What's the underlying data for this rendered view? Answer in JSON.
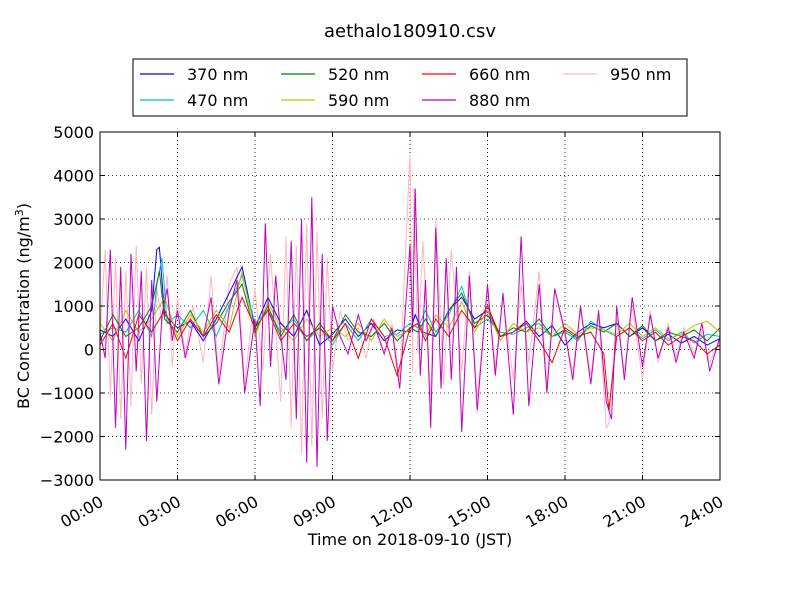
{
  "chart_data": {
    "type": "line",
    "title": "aethalo180910.csv",
    "xlabel": "Time on 2018-09-10 (JST)",
    "ylabel": "BC Concentration (ng/m³)",
    "ylabel_main": "BC Concentration (ng/m",
    "ylabel_sup": "3",
    "ylabel_close": ")",
    "xlim": [
      0,
      24
    ],
    "ylim": [
      -3000,
      5000
    ],
    "grid": true,
    "legend_position": "top, above plot",
    "x_ticks": [
      {
        "value": 0,
        "label": "00:00"
      },
      {
        "value": 3,
        "label": "03:00"
      },
      {
        "value": 6,
        "label": "06:00"
      },
      {
        "value": 9,
        "label": "09:00"
      },
      {
        "value": 12,
        "label": "12:00"
      },
      {
        "value": 15,
        "label": "15:00"
      },
      {
        "value": 18,
        "label": "18:00"
      },
      {
        "value": 21,
        "label": "21:00"
      },
      {
        "value": 24,
        "label": "24:00"
      }
    ],
    "y_ticks": [
      {
        "value": -3000,
        "label": "−3000"
      },
      {
        "value": -2000,
        "label": "−2000"
      },
      {
        "value": -1000,
        "label": "−1000"
      },
      {
        "value": 0,
        "label": "0"
      },
      {
        "value": 1000,
        "label": "1000"
      },
      {
        "value": 2000,
        "label": "2000"
      },
      {
        "value": 3000,
        "label": "3000"
      },
      {
        "value": 4000,
        "label": "4000"
      },
      {
        "value": 5000,
        "label": "5000"
      }
    ],
    "series": [
      {
        "name": "370 nm",
        "color": "#0000ff",
        "x": [
          0.0,
          0.5,
          1.0,
          1.5,
          2.0,
          2.2,
          2.3,
          2.5,
          3.0,
          3.5,
          4.0,
          4.5,
          5.0,
          5.5,
          6.0,
          6.5,
          7.0,
          7.5,
          8.0,
          8.5,
          9.0,
          9.5,
          10.0,
          10.5,
          11.0,
          11.5,
          12.0,
          12.2,
          12.5,
          13.0,
          13.5,
          14.0,
          14.5,
          15.0,
          15.5,
          16.0,
          16.5,
          17.0,
          17.5,
          18.0,
          18.5,
          19.0,
          19.5,
          20.0,
          20.5,
          21.0,
          21.5,
          22.0,
          22.5,
          23.0,
          23.5,
          24.0
        ],
        "y": [
          450,
          300,
          700,
          200,
          900,
          2300,
          2350,
          800,
          500,
          650,
          200,
          700,
          1300,
          1900,
          500,
          1200,
          600,
          300,
          900,
          100,
          350,
          700,
          300,
          600,
          200,
          450,
          400,
          800,
          400,
          300,
          900,
          1200,
          700,
          900,
          300,
          400,
          650,
          300,
          550,
          100,
          400,
          600,
          500,
          600,
          300,
          500,
          200,
          350,
          150,
          300,
          100,
          250
        ]
      },
      {
        "name": "470 nm",
        "color": "#00c0c0",
        "x": [
          0.0,
          0.5,
          1.0,
          1.5,
          2.0,
          2.2,
          2.4,
          2.6,
          3.0,
          3.5,
          4.0,
          4.5,
          5.0,
          5.5,
          6.0,
          6.5,
          7.0,
          7.5,
          8.0,
          8.5,
          9.0,
          9.5,
          10.0,
          10.5,
          11.0,
          11.5,
          12.0,
          12.3,
          12.6,
          13.0,
          13.5,
          14.0,
          14.5,
          15.0,
          15.5,
          16.0,
          16.5,
          17.0,
          17.5,
          18.0,
          18.5,
          19.0,
          19.5,
          20.0,
          20.5,
          21.0,
          21.5,
          22.0,
          22.5,
          23.0,
          23.5,
          24.0
        ],
        "y": [
          350,
          500,
          400,
          900,
          300,
          1500,
          2100,
          600,
          800,
          500,
          900,
          300,
          1000,
          1700,
          600,
          900,
          400,
          700,
          200,
          500,
          100,
          600,
          200,
          700,
          300,
          350,
          600,
          500,
          900,
          400,
          800,
          1450,
          500,
          700,
          400,
          350,
          500,
          600,
          300,
          400,
          200,
          650,
          450,
          300,
          500,
          250,
          450,
          200,
          400,
          150,
          350,
          300
        ]
      },
      {
        "name": "520 nm",
        "color": "#008000",
        "x": [
          0.0,
          0.5,
          1.0,
          1.5,
          2.0,
          2.3,
          2.5,
          3.0,
          3.5,
          4.0,
          4.5,
          5.0,
          5.5,
          6.0,
          6.5,
          7.0,
          7.5,
          8.0,
          8.5,
          9.0,
          9.5,
          10.0,
          10.5,
          11.0,
          11.5,
          12.0,
          12.3,
          12.6,
          13.0,
          13.5,
          14.0,
          14.5,
          15.0,
          15.5,
          16.0,
          16.5,
          17.0,
          17.5,
          18.0,
          18.5,
          19.0,
          19.5,
          20.0,
          20.5,
          21.0,
          21.5,
          22.0,
          22.5,
          23.0,
          23.5,
          24.0
        ],
        "y": [
          200,
          800,
          300,
          500,
          1000,
          1800,
          700,
          400,
          900,
          300,
          600,
          1100,
          1500,
          400,
          1000,
          300,
          800,
          200,
          600,
          200,
          800,
          400,
          300,
          600,
          200,
          500,
          400,
          700,
          300,
          900,
          1300,
          600,
          800,
          300,
          500,
          400,
          700,
          300,
          450,
          250,
          550,
          400,
          600,
          300,
          550,
          200,
          400,
          300,
          450,
          200,
          500
        ]
      },
      {
        "name": "590 nm",
        "color": "#c0c000",
        "x": [
          0.0,
          0.5,
          1.0,
          1.5,
          2.0,
          2.5,
          3.0,
          3.5,
          4.0,
          4.5,
          5.0,
          5.5,
          6.0,
          6.5,
          7.0,
          7.5,
          8.0,
          8.5,
          9.0,
          9.5,
          10.0,
          10.5,
          11.0,
          11.5,
          12.0,
          12.3,
          12.6,
          13.0,
          13.5,
          14.0,
          14.5,
          15.0,
          15.5,
          16.0,
          16.5,
          17.0,
          17.5,
          18.0,
          18.5,
          19.0,
          19.5,
          20.0,
          20.5,
          21.0,
          21.5,
          22.0,
          22.5,
          23.0,
          23.5,
          24.0
        ],
        "y": [
          600,
          200,
          900,
          400,
          700,
          1200,
          300,
          800,
          400,
          900,
          500,
          1800,
          300,
          1100,
          500,
          200,
          700,
          300,
          500,
          300,
          600,
          200,
          700,
          300,
          450,
          600,
          300,
          800,
          500,
          1100,
          400,
          900,
          200,
          600,
          400,
          500,
          300,
          600,
          350,
          500,
          450,
          350,
          600,
          300,
          500,
          250,
          350,
          550,
          650,
          400
        ]
      },
      {
        "name": "660 nm",
        "color": "#ff0000",
        "x": [
          0.0,
          0.5,
          1.0,
          1.5,
          2.0,
          2.5,
          3.0,
          3.5,
          4.0,
          4.5,
          5.0,
          5.5,
          6.0,
          6.5,
          7.0,
          7.5,
          8.0,
          8.5,
          9.0,
          9.5,
          10.0,
          10.5,
          11.0,
          11.5,
          12.0,
          12.3,
          12.6,
          13.0,
          13.5,
          14.0,
          14.5,
          15.0,
          15.5,
          16.0,
          16.5,
          17.0,
          17.5,
          18.0,
          18.5,
          19.0,
          19.5,
          19.7,
          20.0,
          20.5,
          21.0,
          21.5,
          22.0,
          22.5,
          23.0,
          23.5,
          24.0
        ],
        "y": [
          100,
          600,
          -200,
          800,
          400,
          900,
          200,
          700,
          300,
          800,
          400,
          1200,
          500,
          900,
          200,
          600,
          300,
          500,
          200,
          600,
          -200,
          700,
          300,
          -600,
          500,
          600,
          200,
          700,
          300,
          900,
          500,
          1000,
          300,
          400,
          600,
          200,
          -300,
          500,
          300,
          400,
          -100,
          -1400,
          300,
          500,
          200,
          400,
          100,
          300,
          200,
          -100,
          100
        ]
      },
      {
        "name": "880 nm",
        "color": "#c000c0",
        "x": [
          0.0,
          0.2,
          0.4,
          0.6,
          0.8,
          1.0,
          1.2,
          1.4,
          1.6,
          1.8,
          2.0,
          2.2,
          2.4,
          2.6,
          2.8,
          3.0,
          3.3,
          3.6,
          4.0,
          4.3,
          4.6,
          5.0,
          5.3,
          5.6,
          6.0,
          6.2,
          6.4,
          6.6,
          6.8,
          7.0,
          7.2,
          7.4,
          7.6,
          7.8,
          8.0,
          8.2,
          8.4,
          8.6,
          8.8,
          9.0,
          9.3,
          9.6,
          10.0,
          10.3,
          10.6,
          11.0,
          11.3,
          11.6,
          12.0,
          12.1,
          12.2,
          12.4,
          12.6,
          12.8,
          13.0,
          13.2,
          13.4,
          13.6,
          13.8,
          14.0,
          14.3,
          14.6,
          15.0,
          15.3,
          15.6,
          16.0,
          16.3,
          16.6,
          17.0,
          17.3,
          17.6,
          18.0,
          18.3,
          18.6,
          19.0,
          19.3,
          19.6,
          19.8,
          20.0,
          20.3,
          20.6,
          21.0,
          21.3,
          21.6,
          22.0,
          22.3,
          22.6,
          23.0,
          23.3,
          23.6,
          24.0
        ],
        "y": [
          400,
          -200,
          2300,
          -1800,
          1900,
          -2300,
          2200,
          -500,
          1800,
          -2100,
          1600,
          -1200,
          800,
          1400,
          200,
          900,
          -200,
          600,
          300,
          1200,
          -800,
          900,
          1600,
          -1000,
          700,
          -1300,
          2900,
          -400,
          1700,
          300,
          -700,
          2500,
          -1600,
          3000,
          -2600,
          3500,
          -2700,
          2200,
          -2100,
          1000,
          300,
          -100,
          800,
          200,
          600,
          -100,
          500,
          -900,
          2400,
          400,
          3700,
          -600,
          1600,
          -1800,
          2800,
          -900,
          2100,
          -700,
          1900,
          -1900,
          1700,
          -1400,
          1500,
          -600,
          1300,
          -1500,
          2600,
          -1300,
          1500,
          -1000,
          1400,
          400,
          -700,
          1000,
          -800,
          900,
          -1200,
          -1600,
          1000,
          -700,
          1200,
          -400,
          800,
          -200,
          500,
          -300,
          400,
          -200,
          600,
          -500,
          300
        ]
      },
      {
        "name": "950 nm",
        "color": "#ffb6c1",
        "x": [
          0.0,
          0.2,
          0.4,
          0.6,
          0.8,
          1.0,
          1.2,
          1.4,
          1.6,
          1.8,
          2.0,
          2.2,
          2.4,
          2.6,
          2.8,
          3.0,
          3.3,
          3.6,
          4.0,
          4.3,
          4.6,
          5.0,
          5.3,
          5.6,
          6.0,
          6.3,
          6.6,
          7.0,
          7.2,
          7.4,
          7.6,
          7.8,
          8.0,
          8.2,
          8.4,
          8.6,
          8.8,
          9.0,
          9.3,
          9.6,
          10.0,
          10.3,
          10.6,
          11.0,
          11.3,
          11.6,
          12.0,
          12.1,
          12.15,
          12.3,
          12.5,
          12.8,
          13.0,
          13.3,
          13.6,
          14.0,
          14.3,
          14.6,
          15.0,
          15.3,
          15.6,
          16.0,
          16.3,
          16.6,
          17.0,
          17.3,
          17.6,
          18.0,
          18.3,
          18.6,
          19.0,
          19.3,
          19.6,
          19.7,
          20.0,
          20.3,
          20.6,
          21.0,
          21.3,
          21.6,
          22.0,
          22.3,
          22.6,
          23.0,
          23.3,
          23.6,
          24.0
        ],
        "y": [
          300,
          2300,
          -1100,
          2100,
          -1600,
          1800,
          -1300,
          2400,
          -800,
          1900,
          -1500,
          1400,
          600,
          1700,
          -400,
          1200,
          -100,
          1000,
          -300,
          1700,
          -600,
          1500,
          1900,
          -800,
          1400,
          -500,
          2200,
          -1200,
          2600,
          -1800,
          2400,
          -2400,
          2900,
          -2200,
          2700,
          -1600,
          2100,
          -500,
          900,
          200,
          500,
          -200,
          700,
          -100,
          600,
          -700,
          4500,
          -500,
          3700,
          -100,
          2500,
          -1200,
          3000,
          -800,
          2300,
          -500,
          1800,
          -1100,
          1400,
          -400,
          1200,
          -700,
          1500,
          -300,
          1800,
          -800,
          1400,
          300,
          -500,
          900,
          -600,
          800,
          -1800,
          -1700,
          700,
          -500,
          1000,
          -700,
          900,
          -300,
          600,
          -200,
          500,
          -100,
          400,
          -300,
          200
        ]
      }
    ]
  }
}
